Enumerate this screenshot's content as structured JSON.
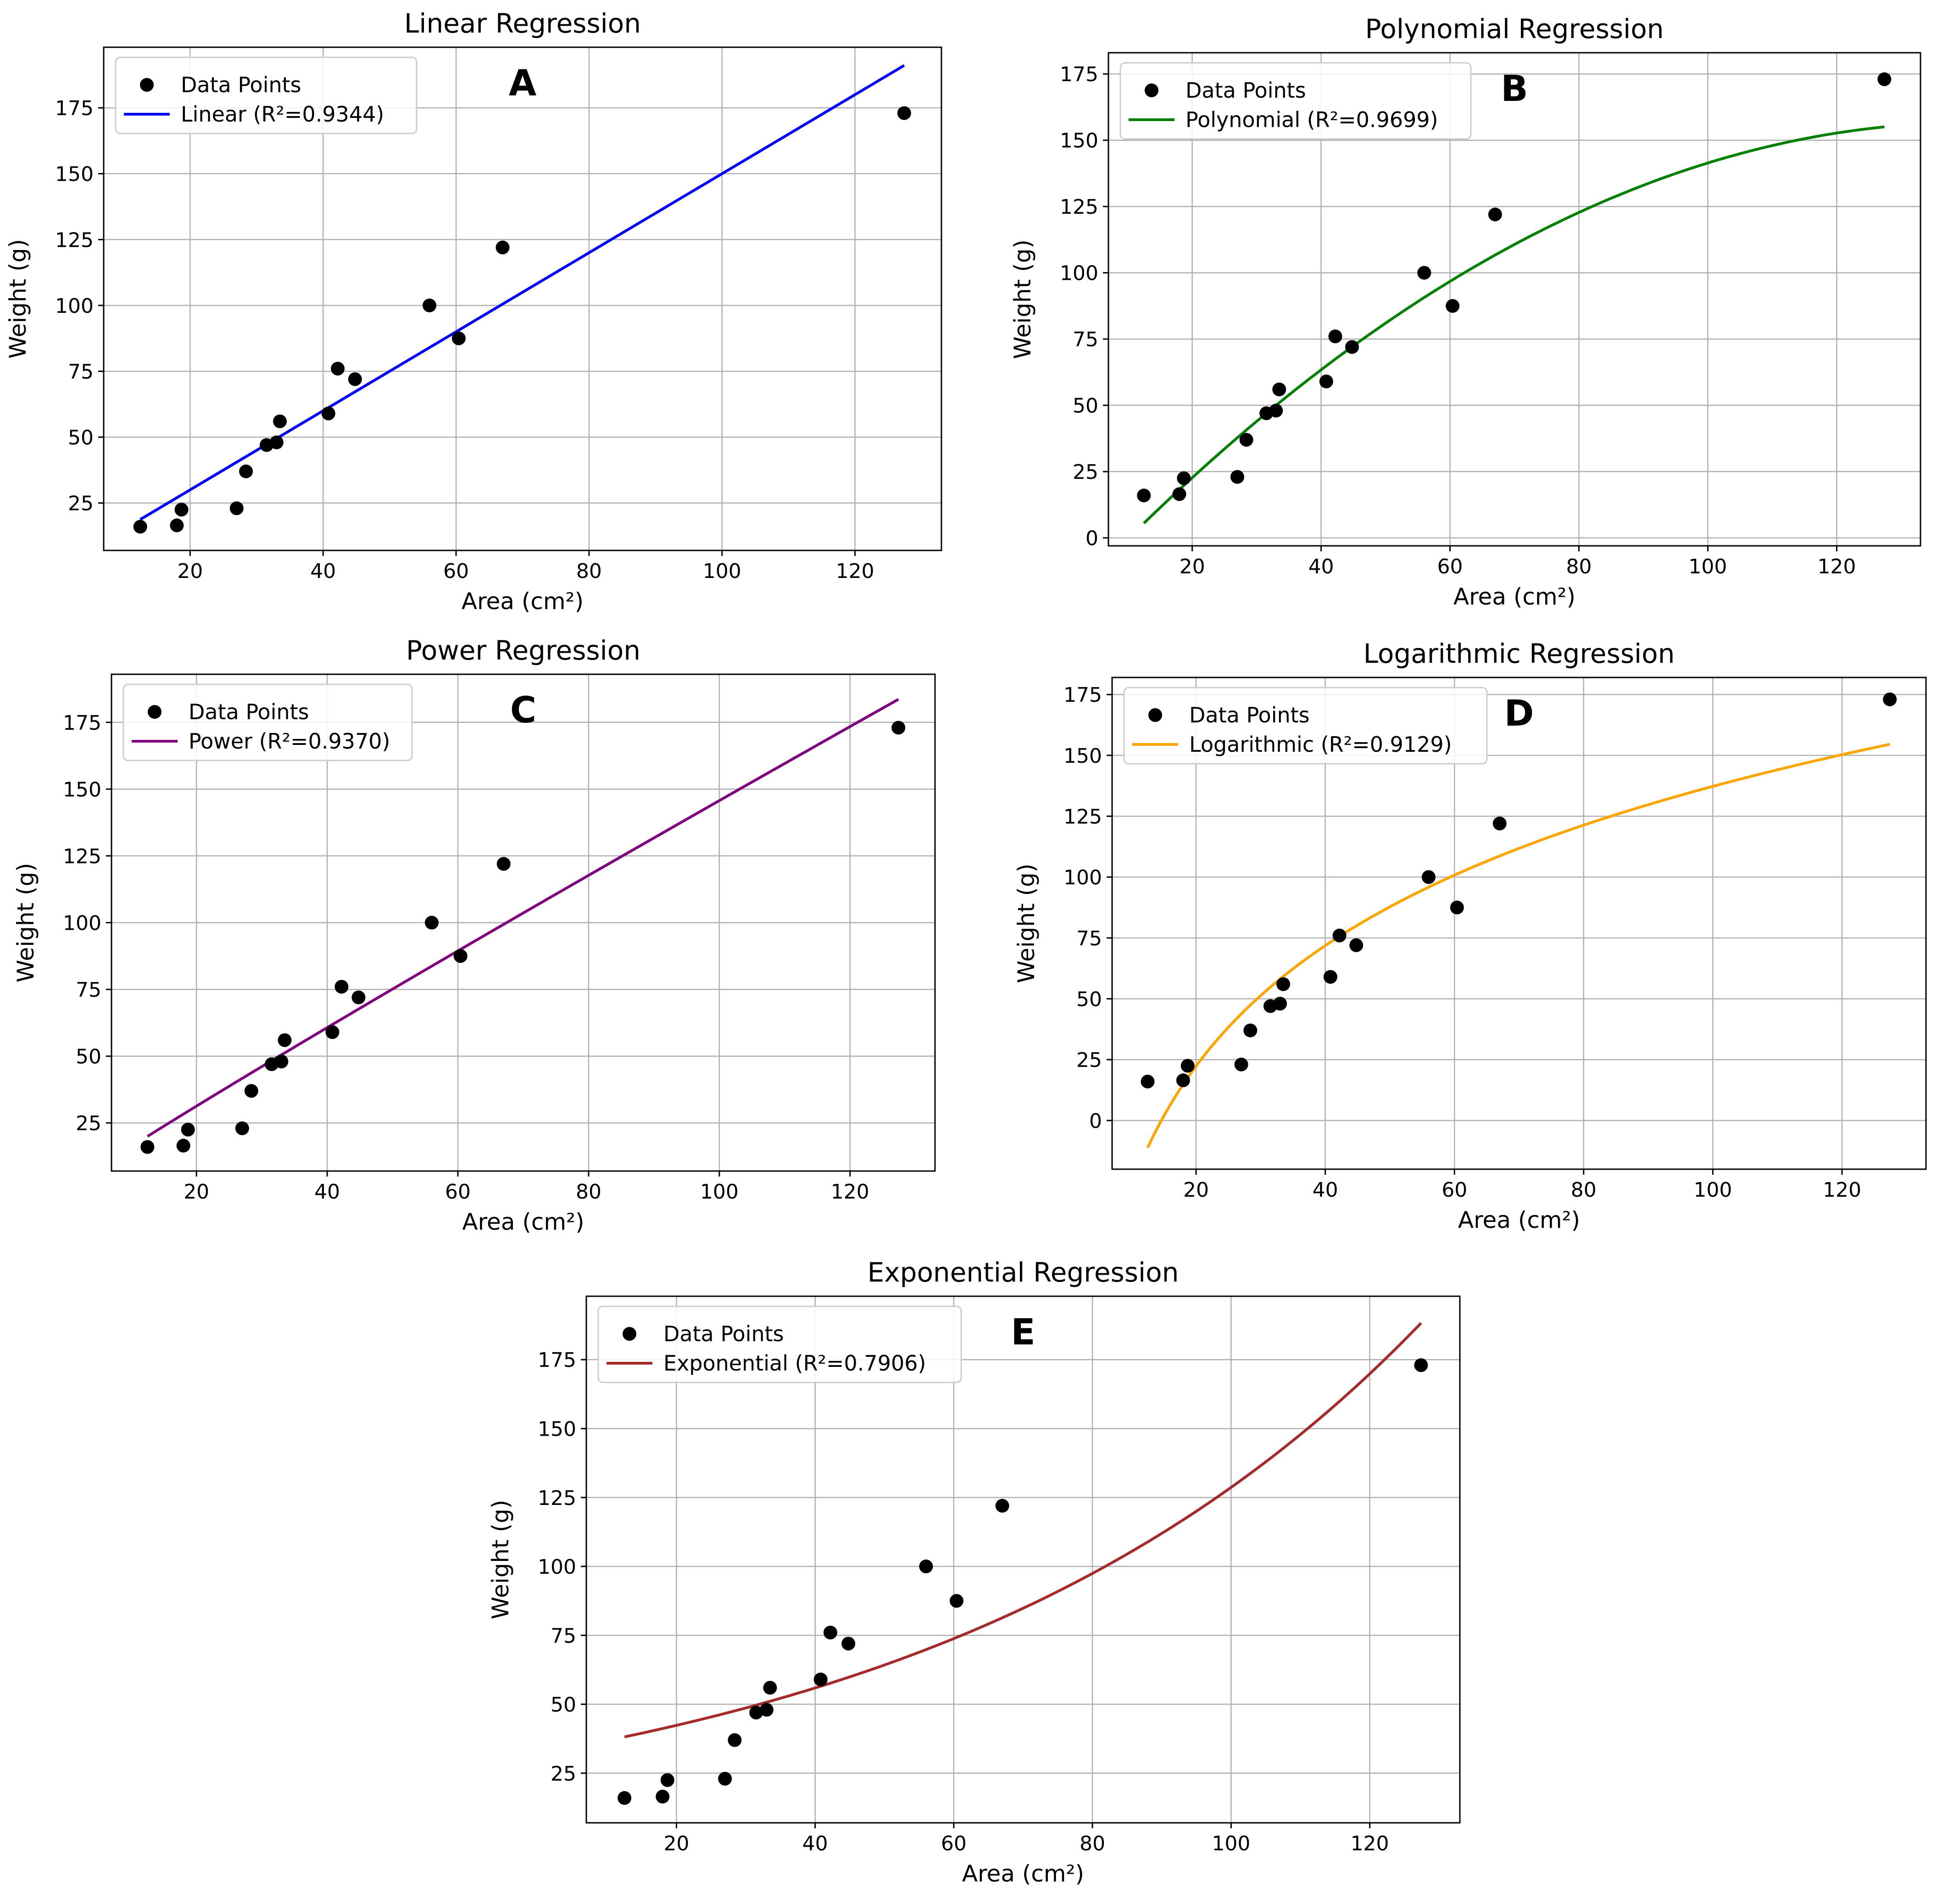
{
  "chart_data": [
    {
      "type": "scatter",
      "title": "Linear Regression",
      "panel_label": "A",
      "xlabel": "Area (cm²)",
      "ylabel": "Weight (g)",
      "xlim": [
        7,
        133
      ],
      "ylim": [
        7,
        198
      ],
      "xticks": [
        20,
        40,
        60,
        80,
        100,
        120
      ],
      "yticks": [
        25,
        50,
        75,
        100,
        125,
        150,
        175
      ],
      "grid": true,
      "legend_position": "top-left",
      "points": {
        "name": "Data Points",
        "color": "#000000",
        "x": [
          12.5,
          18.0,
          18.7,
          27.0,
          28.4,
          31.5,
          33.0,
          33.5,
          40.8,
          42.2,
          44.8,
          56.0,
          60.4,
          67.0,
          127.4
        ],
        "y": [
          16,
          16.5,
          22.5,
          23,
          37,
          47,
          48,
          56,
          59,
          76,
          72,
          100,
          87.5,
          122,
          173
        ]
      },
      "fit": {
        "name": "Linear (R²=0.9344)",
        "model": "linear",
        "color": "#0000ff",
        "x_range": [
          12.5,
          127.4
        ],
        "params": {
          "slope": 1.5,
          "intercept": 0
        }
      }
    },
    {
      "type": "scatter",
      "title": "Polynomial Regression",
      "panel_label": "B",
      "xlabel": "Area (cm²)",
      "ylabel": "Weight (g)",
      "xlim": [
        7,
        133
      ],
      "ylim": [
        -3,
        183
      ],
      "xticks": [
        20,
        40,
        60,
        80,
        100,
        120
      ],
      "yticks": [
        0,
        25,
        50,
        75,
        100,
        125,
        150,
        175
      ],
      "grid": true,
      "legend_position": "top-left",
      "points": {
        "name": "Data Points",
        "color": "#000000",
        "x": [
          12.5,
          18.0,
          18.7,
          27.0,
          28.4,
          31.5,
          33.0,
          33.5,
          40.8,
          42.2,
          44.8,
          56.0,
          60.4,
          67.0,
          127.4
        ],
        "y": [
          16,
          16.5,
          22.5,
          23,
          37,
          47,
          48,
          56,
          59,
          76,
          72,
          100,
          87.5,
          122,
          173
        ]
      },
      "fit": {
        "name": "Polynomial (R²=0.9699)",
        "model": "quadratic",
        "color": "#008000",
        "x_range": [
          12.5,
          127.4
        ],
        "params": {
          "a": -0.00919,
          "b": 2.5868,
          "c": -25.37
        }
      }
    },
    {
      "type": "scatter",
      "title": "Power Regression",
      "panel_label": "C",
      "xlabel": "Area (cm²)",
      "ylabel": "Weight (g)",
      "xlim": [
        7,
        133
      ],
      "ylim": [
        7,
        193
      ],
      "xticks": [
        20,
        40,
        60,
        80,
        100,
        120
      ],
      "yticks": [
        25,
        50,
        75,
        100,
        125,
        150,
        175
      ],
      "grid": true,
      "legend_position": "top-left",
      "points": {
        "name": "Data Points",
        "color": "#000000",
        "x": [
          12.5,
          18.0,
          18.7,
          27.0,
          28.4,
          31.5,
          33.0,
          33.5,
          40.8,
          42.2,
          44.8,
          56.0,
          60.4,
          67.0,
          127.4
        ],
        "y": [
          16,
          16.5,
          22.5,
          23,
          37,
          47,
          48,
          56,
          59,
          76,
          72,
          100,
          87.5,
          122,
          173
        ]
      },
      "fit": {
        "name": "Power (R²=0.9370)",
        "model": "power",
        "color": "#800080",
        "x_range": [
          12.5,
          127.4
        ],
        "params": {
          "a": 1.7874,
          "b": 0.9556
        }
      }
    },
    {
      "type": "scatter",
      "title": "Logarithmic Regression",
      "panel_label": "D",
      "xlabel": "Area (cm²)",
      "ylabel": "Weight (g)",
      "xlim": [
        7,
        133
      ],
      "ylim": [
        -20,
        182
      ],
      "xticks": [
        20,
        40,
        60,
        80,
        100,
        120
      ],
      "yticks": [
        0,
        25,
        50,
        75,
        100,
        125,
        150,
        175
      ],
      "grid": true,
      "legend_position": "top-left",
      "points": {
        "name": "Data Points",
        "color": "#000000",
        "x": [
          12.5,
          18.0,
          18.7,
          27.0,
          28.4,
          31.5,
          33.0,
          33.5,
          40.8,
          42.2,
          44.8,
          56.0,
          60.4,
          67.0,
          127.4
        ],
        "y": [
          16,
          16.5,
          22.5,
          23,
          37,
          47,
          48,
          56,
          59,
          76,
          72,
          100,
          87.5,
          122,
          173
        ]
      },
      "fit": {
        "name": "Logarithmic (R²=0.9129)",
        "model": "logarithmic",
        "color": "#ffa500",
        "x_range": [
          12.5,
          127.4
        ],
        "params": {
          "a": 71.39,
          "b": -191.5
        }
      }
    },
    {
      "type": "scatter",
      "title": "Exponential Regression",
      "panel_label": "E",
      "xlabel": "Area (cm²)",
      "ylabel": "Weight (g)",
      "xlim": [
        7,
        133
      ],
      "ylim": [
        7,
        198
      ],
      "xticks": [
        20,
        40,
        60,
        80,
        100,
        120
      ],
      "yticks": [
        25,
        50,
        75,
        100,
        125,
        150,
        175
      ],
      "grid": true,
      "legend_position": "top-left",
      "points": {
        "name": "Data Points",
        "color": "#000000",
        "x": [
          12.5,
          18.0,
          18.7,
          27.0,
          28.4,
          31.5,
          33.0,
          33.5,
          40.8,
          42.2,
          44.8,
          56.0,
          60.4,
          67.0,
          127.4
        ],
        "y": [
          16,
          16.5,
          22.5,
          23,
          37,
          47,
          48,
          56,
          59,
          76,
          72,
          100,
          87.5,
          122,
          173
        ]
      },
      "fit": {
        "name": "Exponential (R²=0.7906)",
        "model": "exponential",
        "color": "#a52a2a",
        "x_range": [
          12.5,
          127.4
        ],
        "params": {
          "a": 32.08,
          "b": 0.01389
        }
      }
    }
  ]
}
